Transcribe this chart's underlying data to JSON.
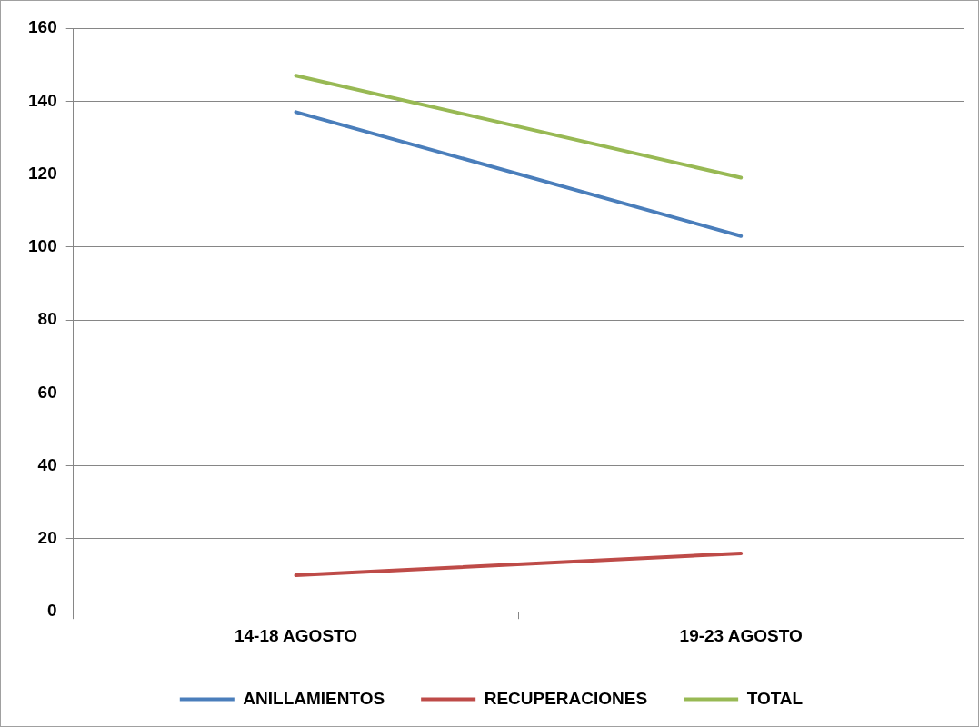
{
  "chart_data": {
    "type": "line",
    "categories": [
      "14-18 AGOSTO",
      "19-23 AGOSTO"
    ],
    "series": [
      {
        "name": "ANILLAMIENTOS",
        "color": "#4a7ebb",
        "values": [
          137,
          103
        ]
      },
      {
        "name": "RECUPERACIONES",
        "color": "#be4b48",
        "values": [
          10,
          16
        ]
      },
      {
        "name": "TOTAL",
        "color": "#98b954",
        "values": [
          147,
          119
        ]
      }
    ],
    "ylim": [
      0,
      160
    ],
    "yticks": [
      0,
      20,
      40,
      60,
      80,
      100,
      120,
      140,
      160
    ],
    "grid": "y",
    "legend": "bottom",
    "marker": "none",
    "line_style": "solid"
  }
}
